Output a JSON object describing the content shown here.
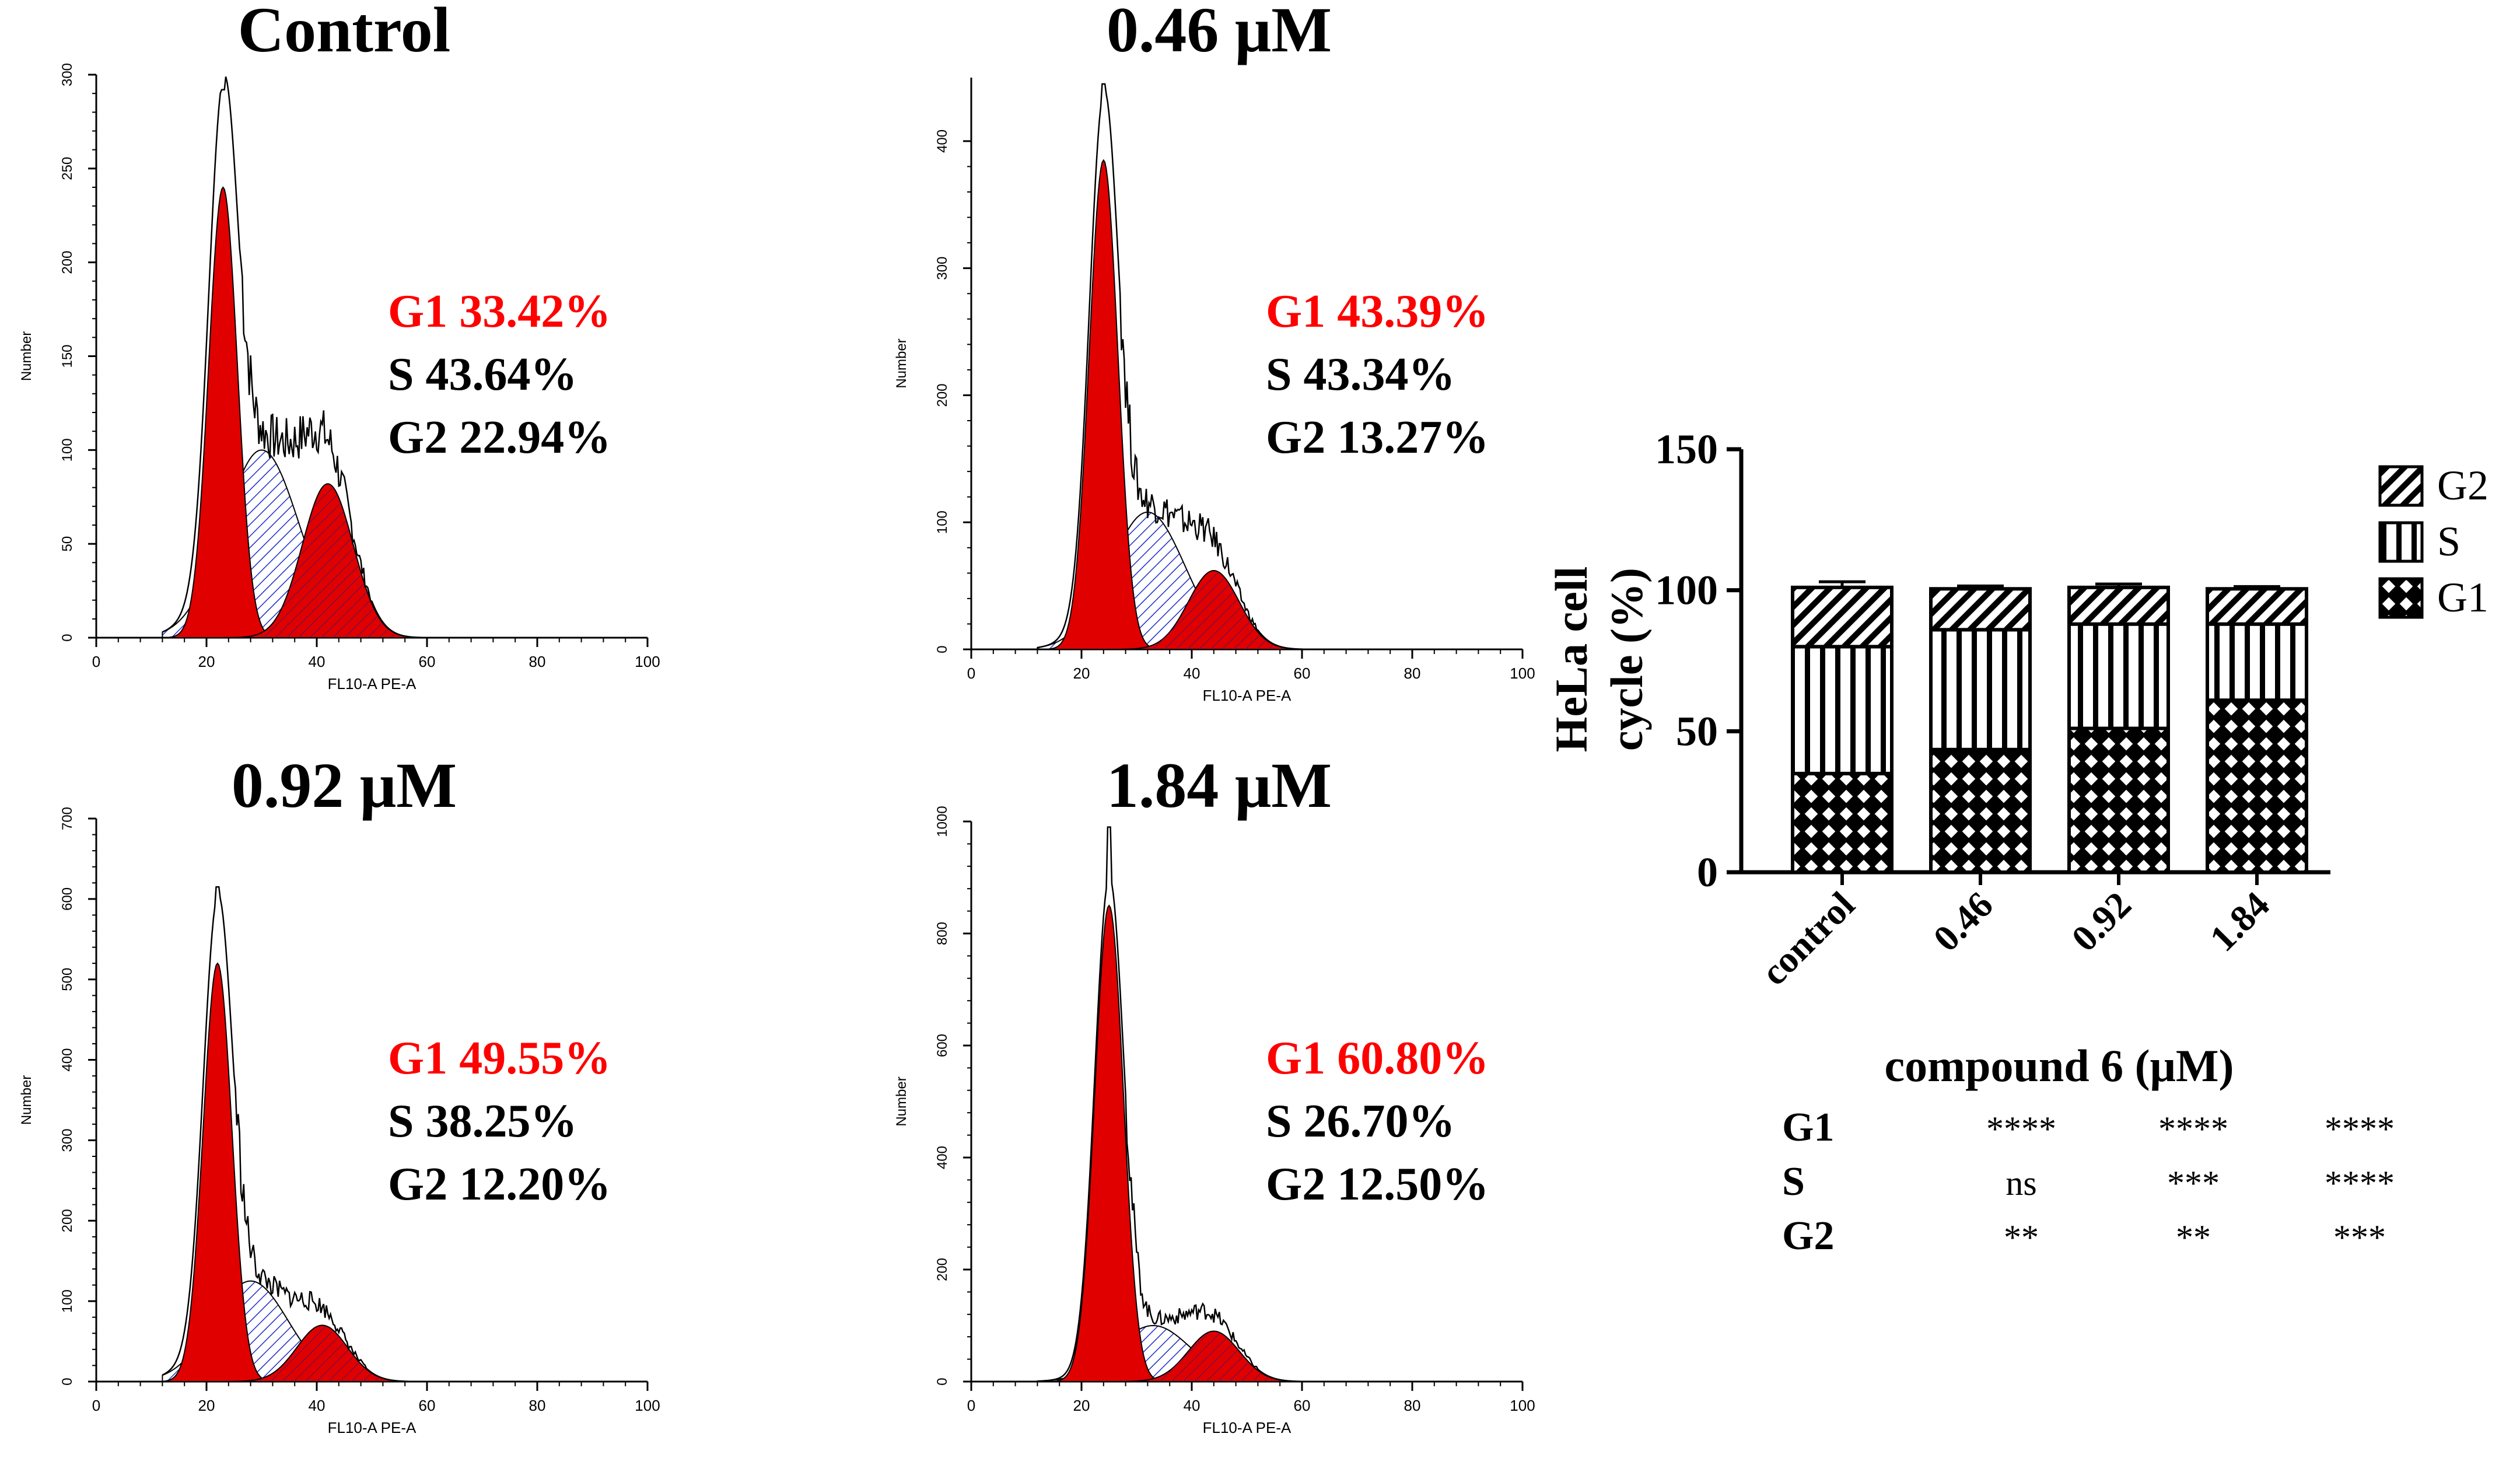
{
  "histograms": [
    {
      "title": "Control",
      "y_max": 300,
      "y_ticks": [
        0,
        50,
        100,
        150,
        200,
        250,
        300
      ],
      "x_ticks": [
        0,
        20,
        40,
        60,
        80,
        100
      ],
      "xlabel": "FL10-A PE-A",
      "ylabel": "Number",
      "g1_peak": 240,
      "s_peak": 100,
      "g2_peak": 82,
      "total_peak": 292,
      "g1_center": 23,
      "g2_center": 42,
      "s_center": 30,
      "g1_label": "G1 33.42%",
      "s_label": "S    43.64%",
      "g2_label": "G2 22.94%"
    },
    {
      "title": "0.46 μM",
      "y_max": 450,
      "y_ticks": [
        0,
        100,
        200,
        300,
        400
      ],
      "x_ticks": [
        0,
        20,
        40,
        60,
        80,
        100
      ],
      "xlabel": "FL10-A PE-A",
      "ylabel": "Number",
      "g1_peak": 385,
      "s_peak": 108,
      "g2_peak": 62,
      "total_peak": 445,
      "g1_center": 24,
      "g2_center": 44,
      "s_center": 32,
      "g1_label": "G1 43.39%",
      "s_label": "S    43.34%",
      "g2_label": "G2 13.27%"
    },
    {
      "title": "0.92 μM",
      "y_max": 700,
      "y_ticks": [
        0,
        100,
        200,
        300,
        400,
        500,
        600,
        700
      ],
      "x_ticks": [
        0,
        20,
        40,
        60,
        80,
        100
      ],
      "xlabel": "FL10-A PE-A",
      "ylabel": "Number",
      "g1_peak": 520,
      "s_peak": 125,
      "g2_peak": 70,
      "total_peak": 615,
      "g1_center": 22,
      "g2_center": 41,
      "s_center": 28,
      "g1_label": "G1 49.55%",
      "s_label": "S    38.25%",
      "g2_label": "G2 12.20%"
    },
    {
      "title": "1.84 μM",
      "y_max": 1000,
      "y_ticks": [
        0,
        200,
        400,
        600,
        800,
        1000
      ],
      "x_ticks": [
        0,
        20,
        40,
        60,
        80,
        100
      ],
      "xlabel": "FL10-A PE-A",
      "ylabel": "Number",
      "g1_peak": 850,
      "s_peak": 100,
      "g2_peak": 90,
      "total_peak": 990,
      "g1_center": 25,
      "g2_center": 44,
      "s_center": 33,
      "g1_label": "G1 60.80%",
      "s_label": "S    26.70%",
      "g2_label": "G2 12.50%"
    }
  ],
  "chart_data": {
    "type": "bar",
    "stacked": true,
    "categories": [
      "control",
      "0.46",
      "0.92",
      "1.84"
    ],
    "series": [
      {
        "name": "G1",
        "values": [
          35,
          43.5,
          51,
          61
        ]
      },
      {
        "name": "S",
        "values": [
          45,
          42.5,
          37,
          27
        ]
      },
      {
        "name": "G2",
        "values": [
          21,
          14.5,
          13,
          12.5
        ]
      }
    ],
    "errors_top": [
      2,
      1,
      1.2,
      0.8
    ],
    "ylabel_line1": "HeLa cell",
    "ylabel_line2": "cycle (%)",
    "xlabel": "compound 6 (μM)",
    "ylim": [
      0,
      150
    ],
    "yticks": [
      0,
      50,
      100,
      150
    ],
    "legend": [
      "G2",
      "S",
      "G1"
    ]
  },
  "significance": {
    "rows": [
      {
        "label": "G1",
        "values": [
          "****",
          "****",
          "****"
        ]
      },
      {
        "label": "S",
        "values": [
          "ns",
          "***",
          "****"
        ]
      },
      {
        "label": "G2",
        "values": [
          "**",
          "**",
          "***"
        ]
      }
    ]
  },
  "colors": {
    "g1_fill": "#e00000",
    "s_hatch": "#1a2ec8",
    "label_red": "#ff0000",
    "ink": "#000000"
  }
}
